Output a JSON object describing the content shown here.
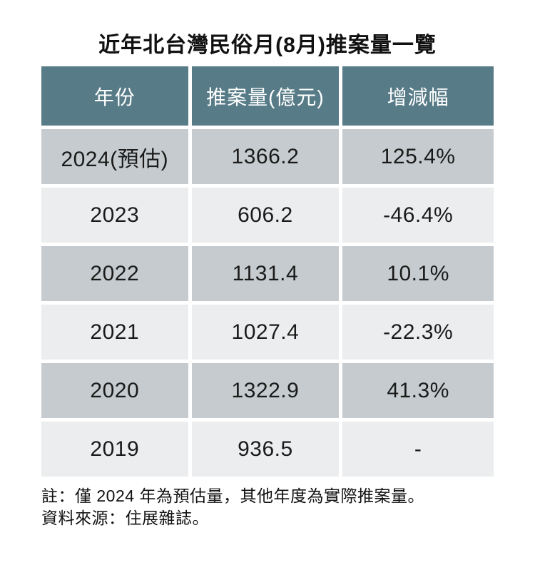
{
  "title": "近年北台灣民俗月(8月)推案量一覽",
  "chart_data": {
    "type": "table",
    "title": "近年北台灣民俗月(8月)推案量一覽",
    "columns": [
      "年份",
      "推案量(億元)",
      "增減幅"
    ],
    "rows": [
      [
        "2024(預估)",
        "1366.2",
        "125.4%"
      ],
      [
        "2023",
        "606.2",
        "-46.4%"
      ],
      [
        "2022",
        "1131.4",
        "10.1%"
      ],
      [
        "2021",
        "1027.4",
        "-22.3%"
      ],
      [
        "2020",
        "1322.9",
        "41.3%"
      ],
      [
        "2019",
        "936.5",
        "-"
      ]
    ],
    "layout_hints": {
      "row_shading": "alternating starting dark on first data row",
      "header_style": "teal background, white text",
      "cell_gap": "white 5px gutters"
    }
  },
  "notes": {
    "line1": "註：僅 2024 年為預估量，其他年度為實際推案量。",
    "line2": "資料來源：住展雜誌。"
  },
  "colors": {
    "header_bg": "#577B87",
    "row_dark": "#C5CBCE",
    "row_light": "#EBEDEE",
    "header_text": "#FFFFFF",
    "body_text": "#1A1A1A"
  }
}
